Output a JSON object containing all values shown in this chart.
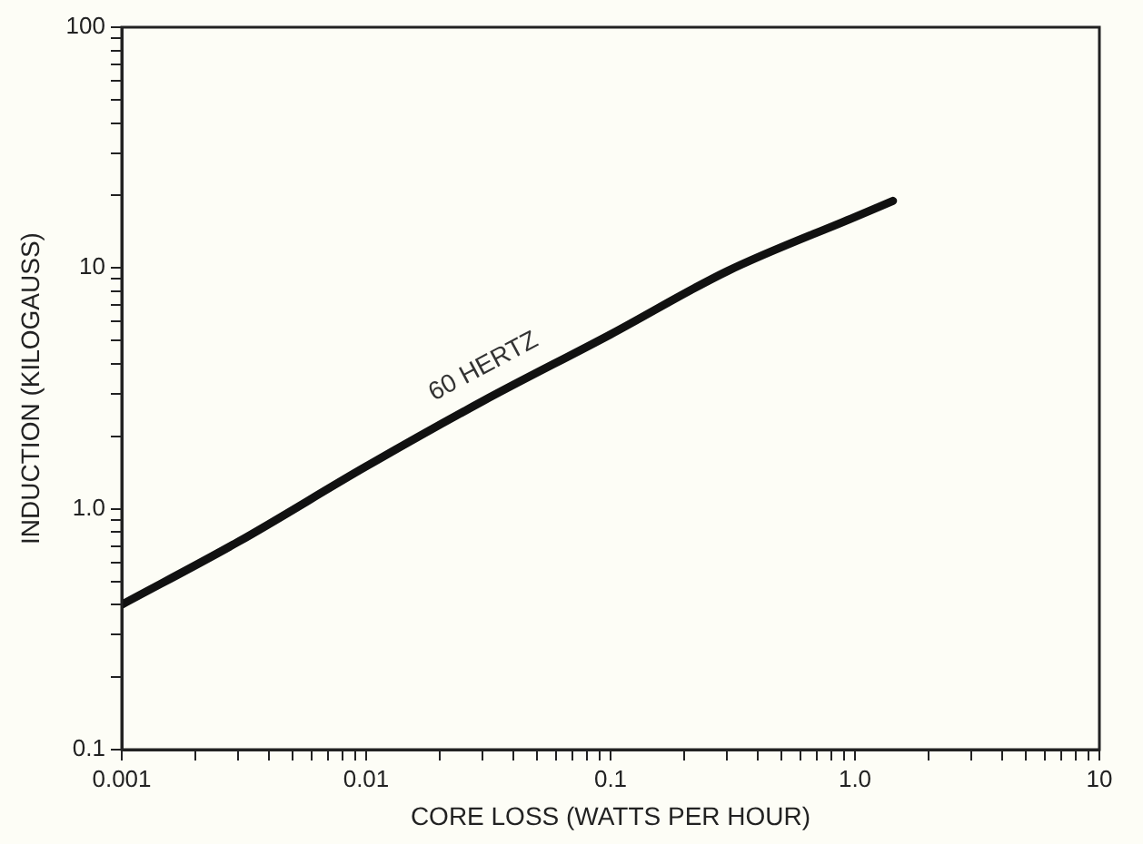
{
  "chart_data": {
    "type": "line",
    "xlabel": "CORE LOSS (WATTS PER HOUR)",
    "ylabel": "INDUCTION (KILOGAUSS)",
    "log": "xy",
    "grid": false,
    "legend": false,
    "marker": "none",
    "line_style": "solid",
    "xlim": [
      0.001,
      10
    ],
    "ylim": [
      0.1,
      100
    ],
    "xticks": [
      0.001,
      {
        "value": 0.002,
        "label": null
      },
      {
        "value": 0.003,
        "label": null
      },
      {
        "value": 0.004,
        "label": null
      },
      {
        "value": 0.005,
        "label": null
      },
      {
        "value": 0.006,
        "label": null
      },
      {
        "value": 0.007,
        "label": null
      },
      {
        "value": 0.008,
        "label": null
      },
      {
        "value": 0.009,
        "label": null
      },
      0.01,
      {
        "value": 0.02,
        "label": null
      },
      {
        "value": 0.03,
        "label": null
      },
      {
        "value": 0.04,
        "label": null
      },
      {
        "value": 0.05,
        "label": null
      },
      {
        "value": 0.06,
        "label": null
      },
      {
        "value": 0.07,
        "label": null
      },
      {
        "value": 0.08,
        "label": null
      },
      {
        "value": 0.09,
        "label": null
      },
      0.1,
      {
        "value": 0.2,
        "label": null
      },
      {
        "value": 0.3,
        "label": null
      },
      {
        "value": 0.4,
        "label": null
      },
      {
        "value": 0.5,
        "label": null
      },
      {
        "value": 0.6,
        "label": null
      },
      {
        "value": 0.7,
        "label": null
      },
      {
        "value": 0.8,
        "label": null
      },
      {
        "value": 0.9,
        "label": null
      },
      {
        "value": 1,
        "label": "1.0"
      },
      {
        "value": 2,
        "label": null
      },
      {
        "value": 3,
        "label": null
      },
      {
        "value": 4,
        "label": null
      },
      {
        "value": 5,
        "label": null
      },
      {
        "value": 6,
        "label": null
      },
      {
        "value": 7,
        "label": null
      },
      {
        "value": 8,
        "label": null
      },
      {
        "value": 9,
        "label": null
      },
      10
    ],
    "yticks": [
      0.1,
      {
        "value": 0.2,
        "label": null
      },
      {
        "value": 0.3,
        "label": null
      },
      {
        "value": 0.4,
        "label": null
      },
      {
        "value": 0.5,
        "label": null
      },
      {
        "value": 0.6,
        "label": null
      },
      {
        "value": 0.7,
        "label": null
      },
      {
        "value": 0.8,
        "label": null
      },
      {
        "value": 0.9,
        "label": null
      },
      {
        "value": 1,
        "label": "1.0"
      },
      {
        "value": 2,
        "label": null
      },
      {
        "value": 3,
        "label": null
      },
      {
        "value": 4,
        "label": null
      },
      {
        "value": 5,
        "label": null
      },
      {
        "value": 6,
        "label": null
      },
      {
        "value": 7,
        "label": null
      },
      {
        "value": 8,
        "label": null
      },
      {
        "value": 9,
        "label": null
      },
      10,
      {
        "value": 20,
        "label": null
      },
      {
        "value": 30,
        "label": null
      },
      {
        "value": 40,
        "label": null
      },
      {
        "value": 50,
        "label": null
      },
      {
        "value": 60,
        "label": null
      },
      {
        "value": 70,
        "label": null
      },
      {
        "value": 80,
        "label": null
      },
      {
        "value": 90,
        "label": null
      },
      100
    ],
    "series": [
      {
        "color": "#111111",
        "x": [
          0.001,
          0.003,
          0.01,
          0.03,
          0.1,
          0.3,
          1,
          1.43
        ],
        "values": [
          0.4,
          0.73,
          1.5,
          2.8,
          5.3,
          9.7,
          16.3,
          19
        ]
      }
    ],
    "annotations": [
      "60 HERTZ"
    ]
  }
}
